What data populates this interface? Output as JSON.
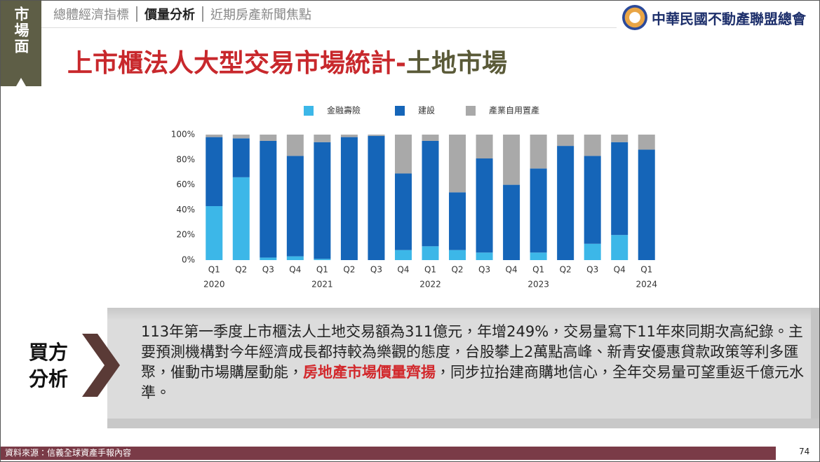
{
  "side_label": "市場面",
  "tabs": [
    "總體經濟指標",
    "價量分析",
    "近期房產新聞焦點"
  ],
  "title_main": "上市櫃法人大型交易市場統計-",
  "title_sub": "土地市場",
  "logo_text": "中華民國不動產聯盟總會",
  "chart_data": {
    "type": "stacked_bar",
    "categories": [
      "Q1",
      "Q2",
      "Q3",
      "Q4",
      "Q1",
      "Q2",
      "Q3",
      "Q4",
      "Q1",
      "Q2",
      "Q3",
      "Q4",
      "Q1",
      "Q2",
      "Q3",
      "Q4",
      "Q1"
    ],
    "years": [
      "2020",
      null,
      null,
      null,
      "2021",
      null,
      null,
      null,
      "2022",
      null,
      null,
      null,
      "2023",
      null,
      null,
      null,
      "2024"
    ],
    "series": [
      {
        "name": "金融壽險",
        "color": "#3cb7e8",
        "values": [
          43,
          66,
          2,
          3,
          1,
          0,
          0,
          8,
          11,
          8,
          6,
          0,
          6,
          0,
          13,
          20,
          0
        ]
      },
      {
        "name": "建設",
        "color": "#1565b8",
        "values": [
          55,
          31,
          93,
          80,
          93,
          98,
          99,
          61,
          84,
          46,
          75,
          60,
          67,
          91,
          70,
          74,
          88
        ]
      },
      {
        "name": "產業自用置產",
        "color": "#a9a9a9",
        "values": [
          2,
          3,
          5,
          17,
          6,
          2,
          1,
          31,
          5,
          46,
          19,
          40,
          27,
          9,
          17,
          6,
          12
        ]
      }
    ],
    "ylim": [
      0,
      100
    ],
    "yticks": [
      {
        "value": 0,
        "label": "0%"
      },
      {
        "value": 20,
        "label": "20%"
      },
      {
        "value": 40,
        "label": "40%"
      },
      {
        "value": 60,
        "label": "60%"
      },
      {
        "value": 80,
        "label": "80%"
      },
      {
        "value": 100,
        "label": "100%"
      }
    ],
    "legend": "top"
  },
  "analysis": {
    "label_1": "買方",
    "label_2": "分析",
    "text_before": "113年第一季度上市櫃法人土地交易額為311億元，年增249%，交易量寫下11年來同期次高紀錄。主要預測機構對今年經濟成長都持較為樂觀的態度，台股攀上2萬點高峰、新青安優惠貸款政策等利多匯聚，催動市場購屋動能，",
    "text_highlight": "房地產市場價量齊揚",
    "text_after": "，同步拉抬建商購地信心，全年交易量可望重返千億元水準。"
  },
  "footer": "資料來源：信義全球資產手報內容",
  "page_number": "74"
}
